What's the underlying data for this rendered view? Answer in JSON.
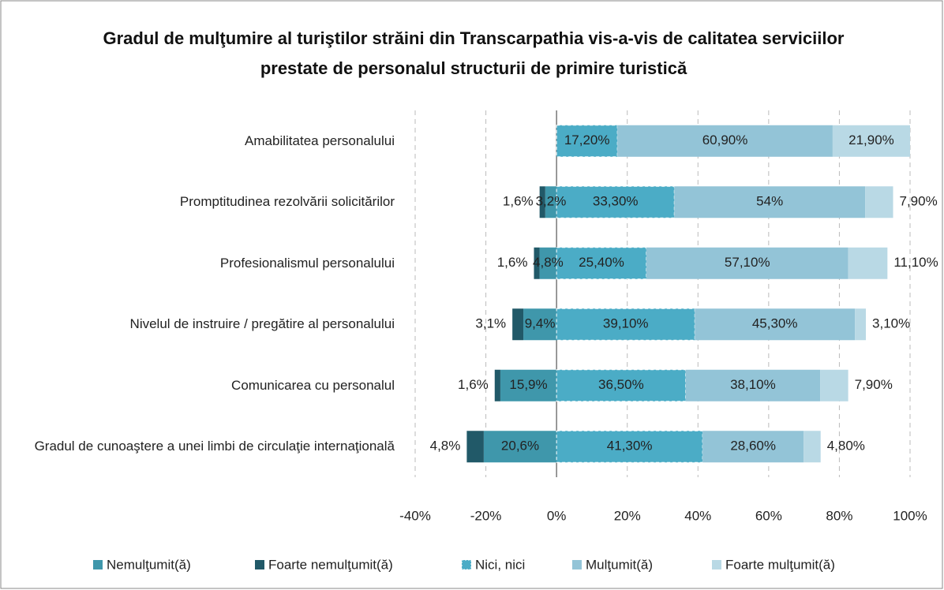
{
  "chart_data": {
    "type": "diverging-bar",
    "title": "Gradul de mulţumire al turiştilor străini din Transcarpathia vis-a-vis de calitatea serviciilor prestate de personalul structurii de primire turistică",
    "categories": [
      "Amabilitatea personalului",
      "Promptitudinea rezolvării solicitărilor",
      "Profesionalismul personalului",
      "Nivelul de instruire / pregătire al personalului",
      "Comunicarea cu personalul",
      "Gradul de cunoaştere a unei limbi de circulaţie internaţională"
    ],
    "series": [
      {
        "name": "Nemulţumit(ă)",
        "color": "#3f97ab",
        "values": [
          null,
          -3.2,
          -4.8,
          -9.4,
          -15.9,
          -20.6
        ],
        "value_labels": [
          null,
          "3,2%",
          "4,8%",
          "9,4%",
          "15,9%",
          "20,6%"
        ]
      },
      {
        "name": "Foarte nemulţumit(ă)",
        "color": "#215968",
        "values": [
          null,
          -1.6,
          -1.6,
          -3.1,
          -1.6,
          -4.8
        ],
        "value_labels": [
          null,
          "1,6%",
          "1,6%",
          "3,1%",
          "1,6%",
          "4,8%"
        ]
      },
      {
        "name": "Nici, nici",
        "color": "#4bacc6",
        "values": [
          17.2,
          33.3,
          25.4,
          39.1,
          36.5,
          41.3
        ],
        "value_labels": [
          "17,20%",
          "33,30%",
          "25,40%",
          "39,10%",
          "36,50%",
          "41,30%"
        ]
      },
      {
        "name": "Mulţumit(ă)",
        "color": "#93c4d7",
        "values": [
          60.9,
          54,
          57.1,
          45.3,
          38.1,
          28.6
        ],
        "value_labels": [
          "60,90%",
          "54%",
          "57,10%",
          "45,30%",
          "38,10%",
          "28,60%"
        ]
      },
      {
        "name": "Foarte mulţumit(ă)",
        "color": "#b9d9e5",
        "values": [
          21.9,
          7.9,
          11.1,
          3.1,
          7.9,
          4.8
        ],
        "value_labels": [
          "21,90%",
          "7,90%",
          "11,10%",
          "3,10%",
          "7,90%",
          "4,80%"
        ]
      }
    ],
    "xlim": [
      -40,
      100
    ],
    "xticks": [
      {
        "value": -40,
        "label": "-40%"
      },
      {
        "value": -20,
        "label": "-20%"
      },
      {
        "value": 0,
        "label": "0%"
      },
      {
        "value": 20,
        "label": "20%"
      },
      {
        "value": 40,
        "label": "40%"
      },
      {
        "value": 60,
        "label": "60%"
      },
      {
        "value": 80,
        "label": "80%"
      },
      {
        "value": 100,
        "label": "100%"
      }
    ],
    "grid": true,
    "legend": "bottom"
  }
}
